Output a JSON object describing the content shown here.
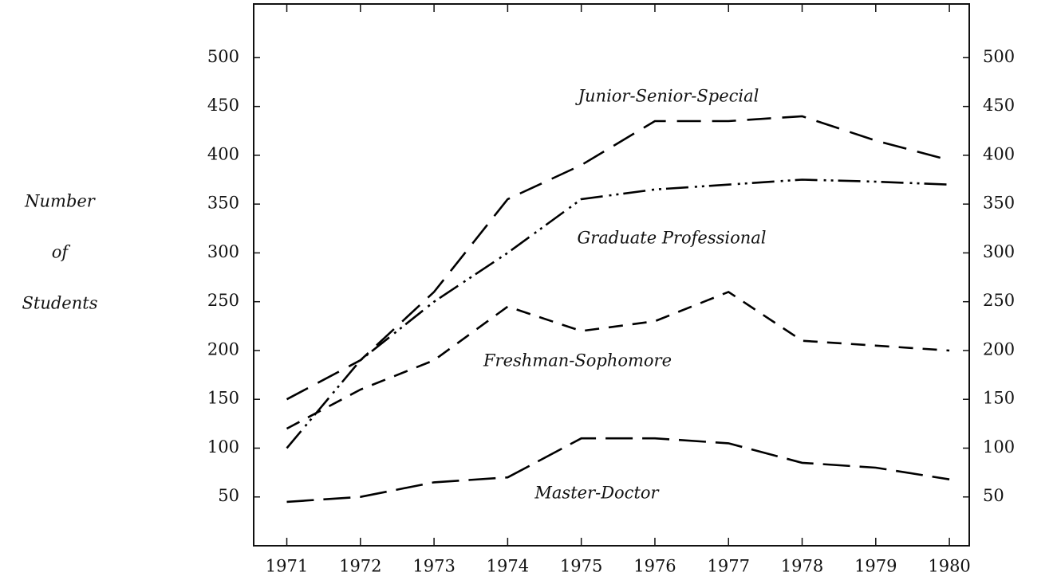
{
  "chart_data": {
    "type": "line",
    "ylabel": [
      "Number",
      "of",
      "Students"
    ],
    "x": [
      1971,
      1972,
      1973,
      1974,
      1975,
      1976,
      1977,
      1978,
      1979,
      1980
    ],
    "xlim": [
      1970.55,
      1980.27
    ],
    "xticks": [
      1971,
      1972,
      1973,
      1974,
      1975,
      1976,
      1977,
      1978,
      1979,
      1980
    ],
    "ylim": [
      0,
      555
    ],
    "yticks": [
      50,
      100,
      150,
      200,
      250,
      300,
      350,
      400,
      450,
      500
    ],
    "grid": false,
    "series": [
      {
        "name": "Junior-Senior-Special",
        "color": "#000000",
        "values": [
          150,
          190,
          260,
          355,
          390,
          435,
          435,
          440,
          415,
          395
        ]
      },
      {
        "name": "Graduate Professional",
        "color": "#000000",
        "values": [
          100,
          190,
          250,
          300,
          355,
          365,
          370,
          375,
          373,
          370
        ]
      },
      {
        "name": "Freshman-Sophomore",
        "color": "#000000",
        "values": [
          120,
          160,
          190,
          245,
          220,
          230,
          260,
          210,
          205,
          200
        ]
      },
      {
        "name": "Master-Doctor",
        "color": "#000000",
        "values": [
          45,
          50,
          65,
          70,
          110,
          110,
          105,
          85,
          80,
          68
        ]
      }
    ]
  }
}
